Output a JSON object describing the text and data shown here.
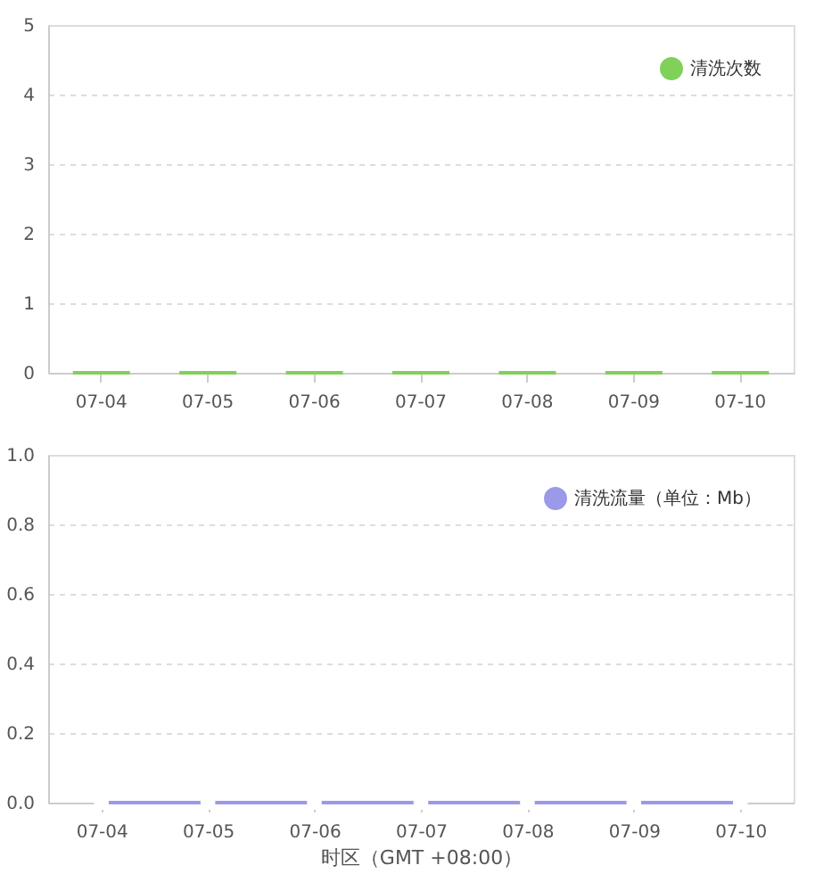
{
  "chart_data": [
    {
      "type": "bar",
      "categories": [
        "07-04",
        "07-05",
        "07-06",
        "07-07",
        "07-08",
        "07-09",
        "07-10"
      ],
      "series": [
        {
          "name": "清洗次数",
          "color": "#7fd15a",
          "values": [
            0,
            0,
            0,
            0,
            0,
            0,
            0
          ]
        }
      ],
      "ylim": [
        0,
        5
      ],
      "yticks": [
        0,
        1,
        2,
        3,
        4,
        5
      ],
      "grid": "y",
      "legend": "top right"
    },
    {
      "type": "line",
      "categories": [
        "07-04",
        "07-05",
        "07-06",
        "07-07",
        "07-08",
        "07-09",
        "07-10"
      ],
      "series": [
        {
          "name": "清洗流量（单位：Mb）",
          "color": "#9b99e8",
          "values": [
            0,
            0,
            0,
            0,
            0,
            0,
            0
          ]
        }
      ],
      "ylim": [
        0,
        1
      ],
      "yticks": [
        {
          "value": 0,
          "label": "0.0"
        },
        {
          "value": 0.2,
          "label": "0.2"
        },
        {
          "value": 0.4,
          "label": "0.4"
        },
        {
          "value": 0.6,
          "label": "0.6"
        },
        {
          "value": 0.8,
          "label": "0.8"
        },
        {
          "value": 1,
          "label": "1.0"
        }
      ],
      "grid": "y",
      "legend": "top right",
      "marker": "circle",
      "xlabel": "时区（GMT +08:00）"
    }
  ]
}
